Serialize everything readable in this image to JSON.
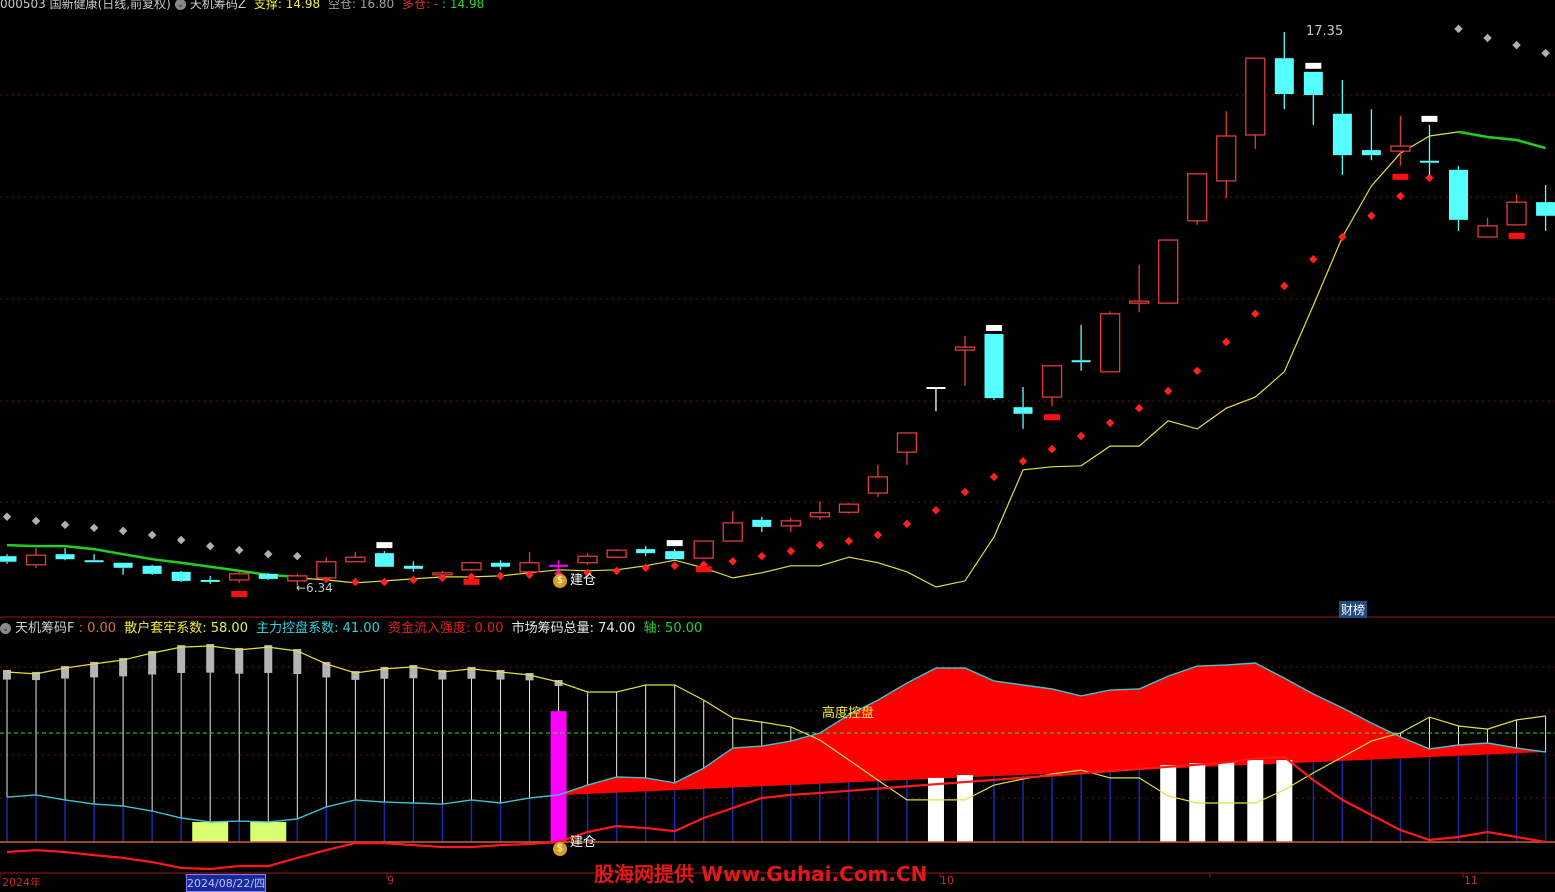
{
  "header": {
    "symbol": "000503 国新健康(日线,前复权)",
    "indicator": "天机筹码Z",
    "support_label": "支撑",
    "support_value": ": 14.98",
    "empty_label": "空仓",
    "empty_value": ": 16.80",
    "long_label": "多仓",
    "long_sep": ": - ",
    "long_value": ": 14.98"
  },
  "lower_header": {
    "indicator": "天机筹码F",
    "indicator_value": " : 0.00",
    "retail_label": "散户套牢系数",
    "retail_value": ": 58.00",
    "main_label": "主力控盘系数",
    "main_value": ": 41.00",
    "flow_label": "资金流入强度",
    "flow_value": ": 0.00",
    "total_label": "市场筹码总量",
    "total_value": ": 74.00",
    "axis_label": "轴",
    "axis_value": ": 50.00"
  },
  "annotations": {
    "high": "17.35",
    "low": "←6.34",
    "build_top": "建仓",
    "build_bottom": "建仓",
    "control": "高度控盘",
    "caibang": "财榜",
    "watermark": "股海网提供 Www.Guhai.Com.CN"
  },
  "date_axis": {
    "year": "2024年",
    "cursor_date": "2024/08/22/四",
    "m9": "9",
    "m10": "10",
    "m11": "11"
  },
  "colors": {
    "up": "#e03c3c",
    "down": "#55ffff",
    "yellow": "#e0e040",
    "green": "#20d020",
    "red_dot": "#ff2020",
    "gray_dot": "#b0b0b0",
    "cyan_line": "#40c0d0",
    "fill_red": "#ff0000",
    "magenta": "#ff00ff",
    "lime": "#d8ff70"
  },
  "chart_data": [
    {
      "type": "candlestick",
      "fields": [
        "open",
        "high",
        "low",
        "close"
      ],
      "candles": [
        [
          6.97,
          7.01,
          6.82,
          6.86
        ],
        [
          6.8,
          7.13,
          6.74,
          6.99
        ],
        [
          7.01,
          7.13,
          6.89,
          6.91
        ],
        [
          6.89,
          7.01,
          6.86,
          6.87
        ],
        [
          6.84,
          6.84,
          6.6,
          6.74
        ],
        [
          6.78,
          6.8,
          6.6,
          6.62
        ],
        [
          6.66,
          6.68,
          6.46,
          6.48
        ],
        [
          6.5,
          6.58,
          6.42,
          6.48
        ],
        [
          6.5,
          6.66,
          6.44,
          6.62
        ],
        [
          6.62,
          6.64,
          6.5,
          6.52
        ],
        [
          6.48,
          6.62,
          6.34,
          6.58
        ],
        [
          6.54,
          6.95,
          6.5,
          6.86
        ],
        [
          6.86,
          7.05,
          6.86,
          6.95
        ],
        [
          7.03,
          7.07,
          6.76,
          6.76
        ],
        [
          6.78,
          6.87,
          6.66,
          6.72
        ],
        [
          6.6,
          6.68,
          6.58,
          6.64
        ],
        [
          6.7,
          6.86,
          6.68,
          6.84
        ],
        [
          6.84,
          6.89,
          6.7,
          6.76
        ],
        [
          6.66,
          7.05,
          6.66,
          6.84
        ],
        [
          6.8,
          6.89,
          6.6,
          6.8
        ],
        [
          6.84,
          7.03,
          6.8,
          6.97
        ],
        [
          6.95,
          7.11,
          6.93,
          7.09
        ],
        [
          7.11,
          7.17,
          6.97,
          7.03
        ],
        [
          7.07,
          7.11,
          6.91,
          6.91
        ],
        [
          6.93,
          7.27,
          6.93,
          7.27
        ],
        [
          7.27,
          7.86,
          7.27,
          7.63
        ],
        [
          7.69,
          7.75,
          7.45,
          7.55
        ],
        [
          7.57,
          7.73,
          7.45,
          7.67
        ],
        [
          7.75,
          8.06,
          7.69,
          7.83
        ],
        [
          7.84,
          8.02,
          7.81,
          8.0
        ],
        [
          8.22,
          8.78,
          8.14,
          8.54
        ],
        [
          9.03,
          9.41,
          8.78,
          9.41
        ],
        [
          10.32,
          10.32,
          9.84,
          10.32
        ],
        [
          11.05,
          11.33,
          10.34,
          11.11
        ],
        [
          11.37,
          11.37,
          10.06,
          10.1
        ],
        [
          9.92,
          10.32,
          9.49,
          9.79
        ],
        [
          10.12,
          10.74,
          9.94,
          10.74
        ],
        [
          10.85,
          11.55,
          10.64,
          10.81
        ],
        [
          10.62,
          11.82,
          10.62,
          11.77
        ],
        [
          11.98,
          12.74,
          11.8,
          12.02
        ],
        [
          11.98,
          13.23,
          11.98,
          13.23
        ],
        [
          13.61,
          14.54,
          13.53,
          14.54
        ],
        [
          14.4,
          15.78,
          14.06,
          15.29
        ],
        [
          15.31,
          16.83,
          15.03,
          16.83
        ],
        [
          16.83,
          17.35,
          15.82,
          16.12
        ],
        [
          16.56,
          16.56,
          15.51,
          16.1
        ],
        [
          15.73,
          16.4,
          14.52,
          14.91
        ],
        [
          15.01,
          15.82,
          14.81,
          14.91
        ],
        [
          14.99,
          15.69,
          14.7,
          15.09
        ],
        [
          14.8,
          15.51,
          14.52,
          14.78
        ],
        [
          14.62,
          14.7,
          13.41,
          13.63
        ],
        [
          13.29,
          13.67,
          13.29,
          13.51
        ],
        [
          13.53,
          14.14,
          13.53,
          13.98
        ],
        [
          13.98,
          14.32,
          13.41,
          13.71
        ]
      ],
      "white_cap_markers": [
        13,
        23,
        34,
        45,
        49
      ],
      "red_block_markers": [
        8,
        16,
        24,
        36,
        48,
        52
      ],
      "build_marker_index": 19,
      "yellow_line": [
        null,
        null,
        null,
        null,
        null,
        null,
        null,
        null,
        null,
        null,
        6.54,
        6.5,
        6.44,
        6.48,
        6.52,
        6.56,
        6.56,
        6.58,
        6.64,
        6.7,
        6.68,
        6.7,
        6.78,
        6.89,
        6.74,
        6.54,
        6.64,
        6.78,
        6.78,
        6.95,
        6.84,
        6.66,
        6.36,
        6.48,
        7.35,
        8.68,
        8.74,
        8.76,
        9.15,
        9.15,
        9.65,
        9.49,
        9.9,
        10.12,
        10.62,
        11.94,
        13.29,
        14.3,
        14.95,
        15.29,
        15.37,
        15.27,
        15.21,
        15.05
      ],
      "green_line": [
        7.19,
        7.17,
        7.17,
        7.11,
        7.01,
        6.91,
        6.84,
        6.76,
        6.68,
        6.6,
        6.56,
        null,
        null,
        null,
        null,
        null,
        null,
        null,
        null,
        null,
        null,
        null,
        null,
        null,
        null,
        null,
        null,
        null,
        null,
        null,
        null,
        null,
        null,
        null,
        null,
        null,
        null,
        null,
        null,
        null,
        null,
        null,
        null,
        null,
        null,
        null,
        null,
        null,
        null,
        null,
        15.37,
        15.27,
        15.21,
        15.05
      ],
      "red_dots": [
        null,
        null,
        null,
        null,
        null,
        null,
        null,
        null,
        null,
        null,
        null,
        6.52,
        6.46,
        6.46,
        6.5,
        6.54,
        6.56,
        6.58,
        6.6,
        6.62,
        6.64,
        6.68,
        6.74,
        6.78,
        6.8,
        6.87,
        6.97,
        7.07,
        7.19,
        7.27,
        7.39,
        7.61,
        7.88,
        8.24,
        8.54,
        8.85,
        9.09,
        9.35,
        9.61,
        9.9,
        10.24,
        10.64,
        11.21,
        11.77,
        12.32,
        12.85,
        13.29,
        13.71,
        14.1,
        14.46,
        null,
        null,
        null,
        null
      ],
      "gray_dots": [
        7.75,
        7.67,
        7.59,
        7.53,
        7.47,
        7.39,
        7.29,
        7.17,
        7.09,
        7.01,
        6.97,
        null,
        null,
        null,
        null,
        null,
        null,
        null,
        null,
        null,
        null,
        null,
        null,
        null,
        null,
        null,
        null,
        null,
        null,
        null,
        null,
        null,
        null,
        null,
        null,
        null,
        null,
        null,
        null,
        null,
        null,
        null,
        null,
        null,
        null,
        null,
        null,
        null,
        null,
        null,
        17.41,
        17.23,
        17.09,
        16.93
      ]
    },
    {
      "type": "line",
      "axis_value": 50,
      "retail_line": [
        78.0,
        77.1,
        79.8,
        81.7,
        83.5,
        86.7,
        89.4,
        89.9,
        88.1,
        89.4,
        87.6,
        81.7,
        77.5,
        79.4,
        80.3,
        78.0,
        79.4,
        78.0,
        76.6,
        73.4,
        68.8,
        68.8,
        72.0,
        72.0,
        65.1,
        56.9,
        55.0,
        52.8,
        46.8,
        37.6,
        28.4,
        19.3,
        19.3,
        19.3,
        26.1,
        28.9,
        31.2,
        33.0,
        29.4,
        29.4,
        21.1,
        17.9,
        17.9,
        17.9,
        23.9,
        31.7,
        39.0,
        46.3,
        50.0,
        57.3,
        53.2,
        51.8,
        56.0,
        57.8
      ],
      "main_line": [
        20.6,
        21.6,
        19.3,
        17.4,
        16.5,
        14.2,
        11.0,
        9.2,
        9.6,
        9.2,
        10.6,
        16.1,
        19.3,
        18.3,
        17.9,
        17.4,
        19.3,
        17.9,
        20.2,
        21.6,
        26.1,
        29.8,
        29.4,
        27.1,
        33.9,
        43.1,
        44.0,
        46.3,
        50.0,
        58.3,
        65.1,
        72.9,
        79.8,
        79.8,
        73.9,
        72.0,
        70.2,
        67.0,
        69.7,
        70.2,
        76.1,
        80.7,
        81.2,
        82.1,
        75.2,
        67.9,
        61.5,
        54.6,
        48.2,
        42.7,
        44.5,
        45.4,
        43.1,
        41.3
      ],
      "flow_line": [
        -4.6,
        -3.7,
        -4.6,
        -6.0,
        -7.3,
        -9.2,
        -11.9,
        -12.4,
        -11.0,
        -11.0,
        -7.3,
        -3.7,
        -0.5,
        -0.5,
        -1.4,
        -2.3,
        -2.3,
        -1.4,
        -0.9,
        0,
        4.6,
        7.3,
        6.4,
        5.0,
        11.0,
        15.6,
        20.2,
        21.6,
        22.5,
        23.5,
        24.5,
        25.5,
        26.5,
        27.5,
        28.5,
        29.5,
        30.5,
        31.5,
        32.5,
        33.5,
        34.5,
        35.5,
        36.5,
        38.3,
        39.0,
        28.4,
        19.3,
        12.4,
        5.5,
        0.9,
        2.3,
        4.6,
        2.3,
        0
      ],
      "fill_base": {
        "from_index": 19,
        "from_value": 21.5,
        "to_index": 53,
        "to_value": 41.3
      },
      "white_bars": {
        "indices": [
          32,
          33,
          40,
          41,
          42,
          43,
          44
        ],
        "values": [
          29.4,
          30.7,
          35.3,
          36.2,
          36.7,
          37.6,
          37.6
        ]
      },
      "lime_bars": {
        "indices": [
          7,
          9
        ],
        "value": 9.2
      },
      "magenta_bar": {
        "index": 19,
        "value": 60
      }
    }
  ]
}
